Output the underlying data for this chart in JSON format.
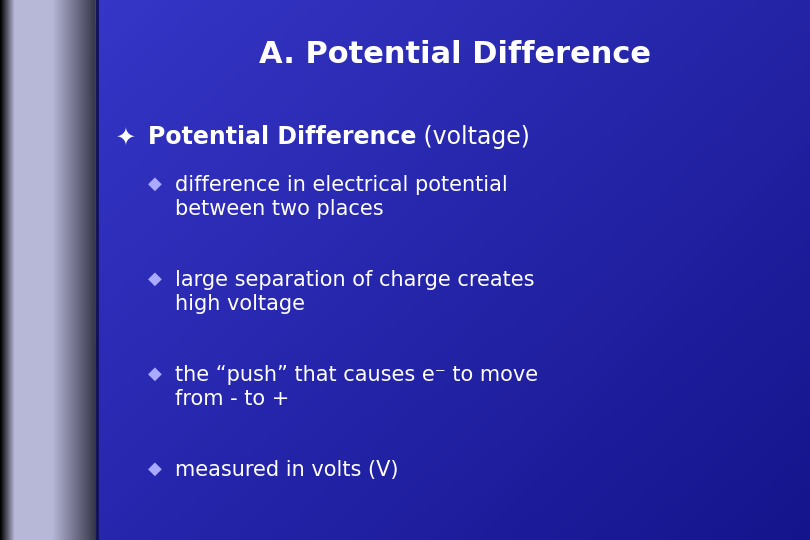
{
  "title": "A. Potential Difference",
  "title_fontsize": 22,
  "title_color": "#ffffff",
  "bg_blue": "#3333cc",
  "bg_blue_dark": "#1a1a80",
  "main_bullet_symbol": "✦",
  "main_bullet_bold": "Potential Difference",
  "main_bullet_normal": " (voltage)",
  "main_bullet_fontsize": 17,
  "sub_bullet_symbol": "◆",
  "sub_bullet_fontsize": 15,
  "sub_bullets": [
    "difference in electrical potential\nbetween two places",
    "large separation of charge creates\nhigh voltage",
    "the “push” that causes e⁻ to move\nfrom - to +",
    "measured in volts (V)"
  ],
  "text_color": "#ffffff",
  "figwidth": 8.1,
  "figheight": 5.4,
  "dpi": 100
}
